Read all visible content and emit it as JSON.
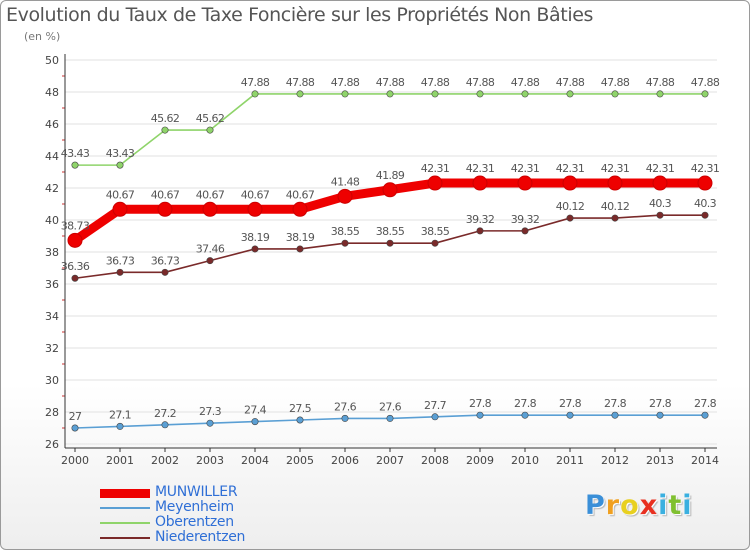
{
  "chart_data": {
    "type": "line",
    "title": "Evolution du Taux de Taxe Foncière sur les Propriétés Non Bâties",
    "ylabel": "(en %)",
    "xlabel": "",
    "ylim": [
      26,
      50
    ],
    "yticks": [
      26,
      28,
      30,
      32,
      34,
      36,
      38,
      40,
      42,
      44,
      46,
      48,
      50
    ],
    "categories": [
      "2000",
      "2001",
      "2002",
      "2003",
      "2004",
      "2005",
      "2006",
      "2007",
      "2008",
      "2009",
      "2010",
      "2011",
      "2012",
      "2013",
      "2014"
    ],
    "series": [
      {
        "name": "MUNWILLER",
        "color": "#ee0000",
        "values": [
          38.73,
          40.67,
          40.67,
          40.67,
          40.67,
          40.67,
          41.48,
          41.89,
          42.31,
          42.31,
          42.31,
          42.31,
          42.31,
          42.31,
          42.31
        ],
        "labels": [
          "38.73",
          "40.67",
          "40.67",
          "40.67",
          "40.67",
          "40.67",
          "41.48",
          "41.89",
          "42.31",
          "42.31",
          "42.31",
          "42.31",
          "42.31",
          "42.31",
          "42.31"
        ]
      },
      {
        "name": "Meyenheim",
        "color": "#5a9fd4",
        "values": [
          27,
          27.1,
          27.2,
          27.3,
          27.4,
          27.5,
          27.6,
          27.6,
          27.7,
          27.8,
          27.8,
          27.8,
          27.8,
          27.8,
          27.8
        ],
        "labels": [
          "27",
          "27.1",
          "27.2",
          "27.3",
          "27.4",
          "27.5",
          "27.6",
          "27.6",
          "27.7",
          "27.8",
          "27.8",
          "27.8",
          "27.8",
          "27.8",
          "27.8"
        ]
      },
      {
        "name": "Oberentzen",
        "color": "#8fd46a",
        "values": [
          43.43,
          43.43,
          45.62,
          45.62,
          47.88,
          47.88,
          47.88,
          47.88,
          47.88,
          47.88,
          47.88,
          47.88,
          47.88,
          47.88,
          47.88
        ],
        "labels": [
          "43.43",
          "43.43",
          "45.62",
          "45.62",
          "47.88",
          "47.88",
          "47.88",
          "47.88",
          "47.88",
          "47.88",
          "47.88",
          "47.88",
          "47.88",
          "47.88",
          "47.88"
        ]
      },
      {
        "name": "Niederentzen",
        "color": "#7a2a2a",
        "values": [
          36.36,
          36.73,
          36.73,
          37.46,
          38.19,
          38.19,
          38.55,
          38.55,
          38.55,
          39.32,
          39.32,
          40.12,
          40.12,
          40.3,
          40.3
        ],
        "labels": [
          "36.36",
          "36.73",
          "36.73",
          "37.46",
          "38.19",
          "38.19",
          "38.55",
          "38.55",
          "38.55",
          "39.32",
          "39.32",
          "40.12",
          "40.12",
          "40.3",
          "40.3"
        ]
      }
    ],
    "legend": "bottom-left"
  },
  "logo": {
    "letters": [
      "P",
      "r",
      "o",
      "x",
      "i",
      "t",
      "i"
    ],
    "colors": [
      "#3a8fd8",
      "#f0a020",
      "#e8d020",
      "#e83020",
      "#3ab0e0",
      "#80c030",
      "#3ab0e0"
    ]
  }
}
